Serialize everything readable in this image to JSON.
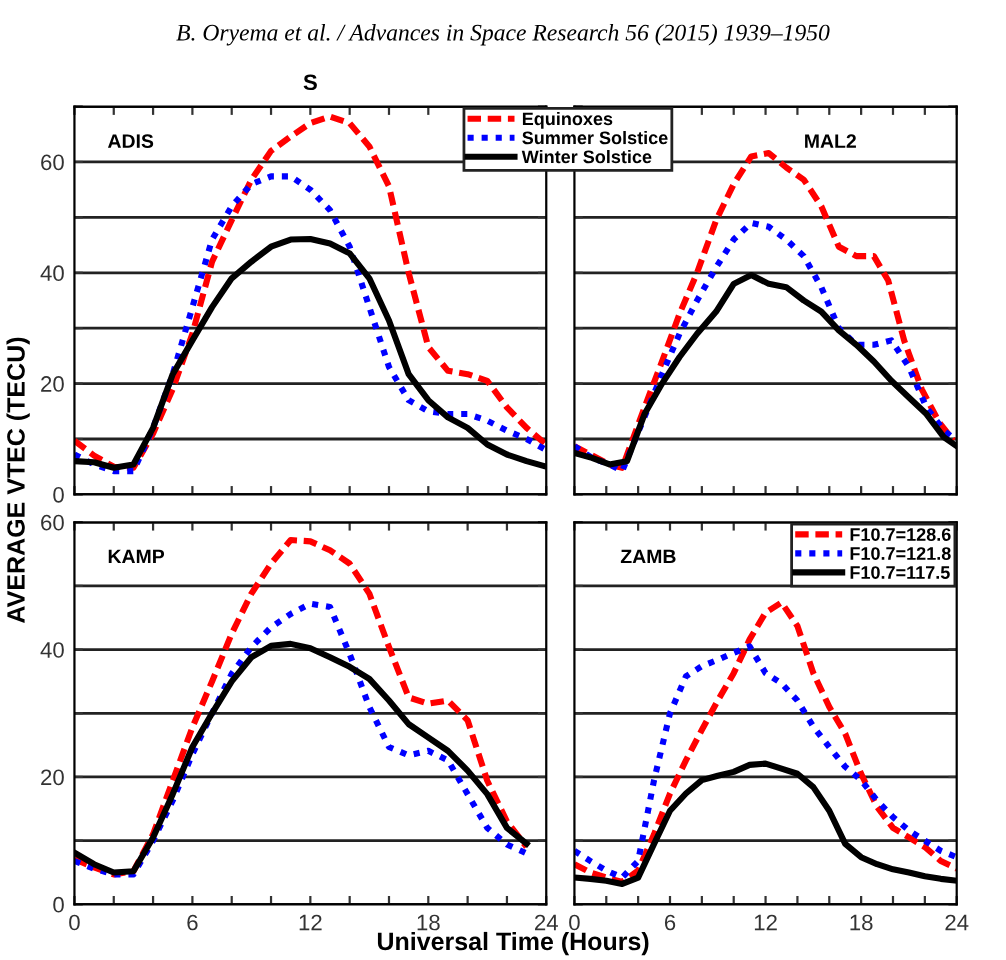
{
  "chart_data": [
    {
      "type": "line",
      "title": "S",
      "ylabel": "AVERAGE VTEC (TECU)",
      "annotations": [
        "ADIS",
        "B. Oryema et al. / Advances in Space Research 56 (2015) 1939–1950"
      ],
      "xlim": [
        0,
        24
      ],
      "ylim": [
        0,
        70
      ],
      "xticks": [
        0,
        {
          "value": 2,
          "label": null
        },
        {
          "value": 4,
          "label": null
        },
        6,
        {
          "value": 8,
          "label": null
        },
        {
          "value": 10,
          "label": null
        },
        12,
        {
          "value": 14,
          "label": null
        },
        {
          "value": 16,
          "label": null
        },
        18,
        {
          "value": 20,
          "label": null
        },
        {
          "value": 22,
          "label": null
        },
        24
      ],
      "yticks": [
        0,
        {
          "value": 10,
          "label": null
        },
        20,
        {
          "value": 30,
          "label": null
        },
        40,
        {
          "value": 50,
          "label": null
        },
        60,
        {
          "value": 70,
          "label": null
        }
      ],
      "grid": "y",
      "legend": "top right",
      "tick_labels": "y",
      "marker": "none",
      "x": [
        0,
        1,
        2,
        3,
        4,
        5,
        6,
        7,
        8,
        9,
        10,
        11,
        12,
        13,
        14,
        15,
        16,
        17,
        18,
        19,
        20,
        21,
        22,
        23,
        24
      ],
      "series": [
        {
          "name": "Equinoxes",
          "color": "#ff0000",
          "line_style": "dashed",
          "values": [
            9.7,
            7,
            5,
            4.8,
            11,
            19,
            29,
            42,
            49.5,
            56.8,
            62,
            64.6,
            67,
            68.2,
            67,
            62.8,
            55.6,
            40,
            26.6,
            22.3,
            21.7,
            20.5,
            15.7,
            12,
            9
          ]
        },
        {
          "name": "Summer Solstice",
          "color": "#0000ff",
          "line_style": "dotted",
          "values": [
            7.2,
            5.4,
            4.2,
            4.2,
            12,
            21.7,
            33.8,
            46,
            52,
            56,
            57.4,
            57.4,
            55,
            51.3,
            44.7,
            33.8,
            23,
            17,
            15,
            14.5,
            14.5,
            13.3,
            11.5,
            10,
            8
          ]
        },
        {
          "name": "Winter Solstice",
          "color": "#000000",
          "line_style": "solid",
          "values": [
            6,
            5.8,
            4.8,
            5.4,
            12,
            21.7,
            27.8,
            33.8,
            39,
            42,
            44.7,
            46,
            46.1,
            45.3,
            43.5,
            39,
            31.4,
            21.7,
            17,
            13.9,
            12,
            9,
            7.2,
            6,
            5
          ]
        }
      ]
    },
    {
      "type": "line",
      "annotations": [
        "MAL2"
      ],
      "xlim": [
        0,
        24
      ],
      "ylim": [
        0,
        70
      ],
      "xticks": [
        0,
        {
          "value": 2,
          "label": null
        },
        {
          "value": 4,
          "label": null
        },
        6,
        {
          "value": 8,
          "label": null
        },
        {
          "value": 10,
          "label": null
        },
        12,
        {
          "value": 14,
          "label": null
        },
        {
          "value": 16,
          "label": null
        },
        18,
        {
          "value": 20,
          "label": null
        },
        {
          "value": 22,
          "label": null
        },
        24
      ],
      "yticks": [
        0,
        {
          "value": 10,
          "label": null
        },
        20,
        {
          "value": 30,
          "label": null
        },
        40,
        {
          "value": 50,
          "label": null
        },
        60,
        {
          "value": 70,
          "label": null
        }
      ],
      "grid": "y",
      "tick_labels": false,
      "marker": "none",
      "series": [
        {
          "color": "#ff0000",
          "line_style": "dashed",
          "x": [
            0,
            2.2,
            3,
            4.4,
            5.5,
            6.6,
            7.7,
            8.9,
            10,
            11.1,
            12.2,
            13.3,
            14.4,
            15.5,
            16.6,
            17.7,
            18.8,
            19.7,
            20.7,
            21.8,
            22.9,
            23.8
          ],
          "values": [
            8.7,
            5.4,
            4.8,
            15.7,
            24,
            32.6,
            40,
            49.5,
            56,
            61,
            61.6,
            59,
            56.8,
            52,
            44.7,
            43,
            43,
            38.6,
            27.8,
            19,
            13,
            9.7
          ]
        },
        {
          "color": "#0000ff",
          "line_style": "dotted",
          "x": [
            0,
            1.1,
            2.2,
            3,
            4.4,
            5.5,
            6.6,
            7.7,
            8.9,
            10,
            11.1,
            12.2,
            13.3,
            14.4,
            15.5,
            16.6,
            17.7,
            18.8,
            19.9,
            21,
            22.1,
            23.2,
            24
          ],
          "values": [
            8.7,
            6.6,
            5.4,
            4.2,
            14,
            21.7,
            29,
            35,
            41,
            46,
            49,
            48.3,
            46,
            43,
            37.4,
            30,
            27,
            27,
            27.8,
            23,
            15.7,
            11.5,
            9.7
          ]
        },
        {
          "color": "#000000",
          "line_style": "solid",
          "x": [
            0,
            1.1,
            2.2,
            3.3,
            4.4,
            5.5,
            6.6,
            7.7,
            8.9,
            10,
            11.1,
            12.2,
            13.3,
            14.4,
            15.5,
            16.6,
            17.7,
            18.8,
            19.9,
            21,
            22.1,
            23.2,
            24
          ],
          "values": [
            7.5,
            6.6,
            5.4,
            6,
            14.5,
            20,
            24.8,
            29,
            33,
            38,
            39.6,
            38,
            37.4,
            35,
            33,
            29.6,
            27,
            24,
            20.5,
            17.5,
            14.5,
            10.3,
            8.7
          ]
        }
      ]
    },
    {
      "type": "line",
      "xlabel": "Universal Time (Hours)",
      "annotations": [
        "KAMP"
      ],
      "xlim": [
        0,
        24
      ],
      "ylim": [
        0,
        60
      ],
      "xticks": [
        0,
        {
          "value": 2,
          "label": null
        },
        {
          "value": 4,
          "label": null
        },
        6,
        {
          "value": 8,
          "label": null
        },
        {
          "value": 10,
          "label": null
        },
        12,
        {
          "value": 14,
          "label": null
        },
        {
          "value": 16,
          "label": null
        },
        18,
        {
          "value": 20,
          "label": null
        },
        {
          "value": 22,
          "label": null
        },
        24
      ],
      "yticks": [
        0,
        {
          "value": 10,
          "label": null
        },
        20,
        {
          "value": 30,
          "label": null
        },
        40,
        {
          "value": 50,
          "label": null
        },
        60
      ],
      "grid": "y",
      "marker": "none",
      "x": [
        0,
        1,
        2,
        3,
        4,
        5,
        6,
        7,
        8,
        9,
        10,
        11,
        12,
        13,
        14,
        15,
        16,
        17,
        18,
        19,
        20,
        21,
        22,
        23
      ],
      "series": [
        {
          "color": "#ff0000",
          "line_style": "dashed",
          "values": [
            7.1,
            5.8,
            4.7,
            5.2,
            11,
            19.4,
            27.8,
            35,
            42.5,
            48.8,
            53.5,
            57.2,
            57,
            55.6,
            53.5,
            48.8,
            40.4,
            32.5,
            31.5,
            32,
            28.9,
            19.4,
            13,
            9
          ]
        },
        {
          "color": "#0000ff",
          "line_style": "dotted",
          "values": [
            6.8,
            5.6,
            4.7,
            4.7,
            10,
            16.3,
            23.6,
            30,
            36.2,
            40.4,
            43.5,
            45.6,
            47.2,
            46.7,
            39.3,
            31,
            24.7,
            23.4,
            24.1,
            22.6,
            17.3,
            12,
            9.4,
            8
          ]
        },
        {
          "color": "#000000",
          "line_style": "solid",
          "values": [
            8.1,
            6.3,
            5,
            5.2,
            10.5,
            17.3,
            24.7,
            30,
            35,
            38.8,
            40.6,
            40.9,
            40.2,
            38.8,
            37.3,
            35.4,
            32,
            28.3,
            26.2,
            24.1,
            21,
            17.3,
            12,
            9.5
          ]
        }
      ]
    },
    {
      "type": "line",
      "annotations": [
        "ZAMB"
      ],
      "xlim": [
        0,
        24
      ],
      "ylim": [
        0,
        60
      ],
      "xticks": [
        0,
        {
          "value": 2,
          "label": null
        },
        {
          "value": 4,
          "label": null
        },
        6,
        {
          "value": 8,
          "label": null
        },
        {
          "value": 10,
          "label": null
        },
        12,
        {
          "value": 14,
          "label": null
        },
        {
          "value": 16,
          "label": null
        },
        18,
        {
          "value": 20,
          "label": null
        },
        {
          "value": 22,
          "label": null
        },
        24
      ],
      "yticks": [
        0,
        {
          "value": 10,
          "label": null
        },
        20,
        {
          "value": 30,
          "label": null
        },
        40,
        {
          "value": 50,
          "label": null
        },
        60
      ],
      "grid": "y",
      "legend": "top right",
      "tick_labels": "x",
      "marker": "none",
      "x": [
        0,
        1,
        2,
        3,
        4,
        5,
        6,
        7,
        8,
        9,
        10,
        11,
        12,
        13,
        14,
        15,
        16,
        17,
        18,
        19,
        20,
        21,
        22,
        23,
        24
      ],
      "series": [
        {
          "name": "F10.7=128.6",
          "color": "#ff0000",
          "line_style": "dashed",
          "values": [
            6.3,
            5,
            4.2,
            3.5,
            5.3,
            11,
            17.4,
            22.6,
            27.4,
            32,
            36.3,
            41.6,
            45.8,
            47.4,
            43.7,
            36.3,
            31,
            26.8,
            20.5,
            15.3,
            12,
            10.5,
            9,
            6.8,
            5.6
          ]
        },
        {
          "name": "F10.7=121.8",
          "color": "#0000ff",
          "line_style": "dotted",
          "values": [
            8.4,
            6.8,
            5.3,
            4.2,
            6.8,
            19.5,
            30,
            35.8,
            37.4,
            38.4,
            39.5,
            40.5,
            36.3,
            34.7,
            32,
            27.9,
            24.7,
            21.6,
            19.5,
            16.3,
            13.7,
            11.6,
            10,
            8.4,
            7.4
          ]
        },
        {
          "name": "F10.7=117.5",
          "color": "#000000",
          "line_style": "solid",
          "values": [
            4.2,
            4,
            3.7,
            3.2,
            4.2,
            9.5,
            14.7,
            17.4,
            19.5,
            20.2,
            20.8,
            21.9,
            22.1,
            21.3,
            20.5,
            18.4,
            14.7,
            9.5,
            7.4,
            6.3,
            5.5,
            5,
            4.4,
            4,
            3.7
          ]
        }
      ]
    }
  ]
}
